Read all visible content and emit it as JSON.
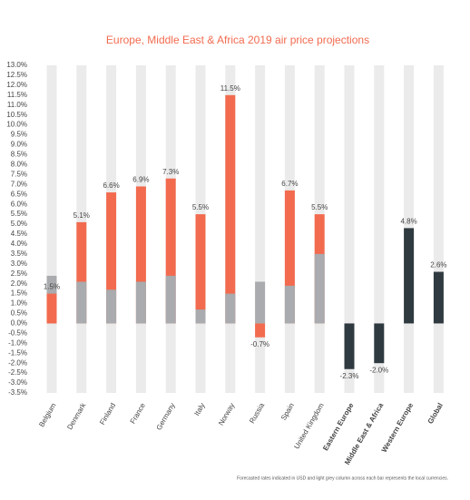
{
  "chart_data": {
    "type": "bar",
    "title": "Europe, Middle East & Africa 2019 air price projections",
    "footnote": "Forecasted rates indicated in USD and light grey column across each bar represents the local currencies.",
    "categories": [
      "Belgium",
      "Denmark",
      "Finland",
      "France",
      "Germany",
      "Italy",
      "Norway",
      "Russia",
      "Spain",
      "United Kingdom",
      "Eastern Europe",
      "Middle East & Africa",
      "Western Europe",
      "Global"
    ],
    "background_color": "#ebebeb",
    "series": [
      {
        "color": "#f26b4f",
        "values": [
          1.5,
          5.1,
          6.6,
          6.9,
          7.3,
          5.5,
          11.5,
          -0.7,
          6.7,
          5.5,
          null,
          null,
          null,
          null
        ],
        "value_labels": [
          "1.5%",
          "5.1%",
          "6.6%",
          "6.9%",
          "7.3%",
          "5.5%",
          "11.5%",
          "-0.7%",
          "6.7%",
          "5.5%",
          null,
          null,
          null,
          null
        ]
      },
      {
        "color": "#a9abae",
        "values": [
          2.4,
          2.1,
          1.7,
          2.1,
          2.4,
          0.7,
          1.5,
          2.1,
          1.9,
          3.5,
          null,
          null,
          null,
          null
        ]
      },
      {
        "color": "#2f3a40",
        "values": [
          null,
          null,
          null,
          null,
          null,
          null,
          null,
          null,
          null,
          null,
          -2.3,
          -2.0,
          4.8,
          2.6
        ],
        "value_labels": [
          null,
          null,
          null,
          null,
          null,
          null,
          null,
          null,
          null,
          null,
          "-2.3%",
          "-2.0%",
          "4.8%",
          "2.6%"
        ]
      }
    ],
    "ylim": [
      -3.5,
      13.0
    ],
    "yticks": [
      {
        "value": -3.5,
        "label": "-3.5%"
      },
      {
        "value": -3,
        "label": "-3.0%"
      },
      {
        "value": -2.5,
        "label": "-2.5%"
      },
      {
        "value": -2,
        "label": "-2.0%"
      },
      {
        "value": -1.5,
        "label": "-1.5%"
      },
      {
        "value": -1,
        "label": "-1.0%"
      },
      {
        "value": -0.5,
        "label": "-0.5%"
      },
      {
        "value": 0,
        "label": "0.0%"
      },
      {
        "value": 0.5,
        "label": "0.5%"
      },
      {
        "value": 1,
        "label": "1.0%"
      },
      {
        "value": 1.5,
        "label": "1.5%"
      },
      {
        "value": 2,
        "label": "2.0%"
      },
      {
        "value": 2.5,
        "label": "2.5%"
      },
      {
        "value": 3,
        "label": "3.0%"
      },
      {
        "value": 3.5,
        "label": "3.5%"
      },
      {
        "value": 4,
        "label": "4.0%"
      },
      {
        "value": 4.5,
        "label": "4.5%"
      },
      {
        "value": 5,
        "label": "5.0%"
      },
      {
        "value": 5.5,
        "label": "5.5%"
      },
      {
        "value": 6,
        "label": "6.0%"
      },
      {
        "value": 6.5,
        "label": "6.5%"
      },
      {
        "value": 7,
        "label": "7.0%"
      },
      {
        "value": 7.5,
        "label": "7.5%"
      },
      {
        "value": 8,
        "label": "8.0%"
      },
      {
        "value": 8.5,
        "label": "8.5%"
      },
      {
        "value": 9,
        "label": "9.0%"
      },
      {
        "value": 9.5,
        "label": "9.5%"
      },
      {
        "value": 10,
        "label": "10.0%"
      },
      {
        "value": 10.5,
        "label": "10.5%"
      },
      {
        "value": 11,
        "label": "11.0%"
      },
      {
        "value": 11.5,
        "label": "11.5%"
      },
      {
        "value": 12,
        "label": "12.0%"
      },
      {
        "value": 12.5,
        "label": "12.5%"
      },
      {
        "value": 13,
        "label": "13.0%"
      }
    ]
  }
}
